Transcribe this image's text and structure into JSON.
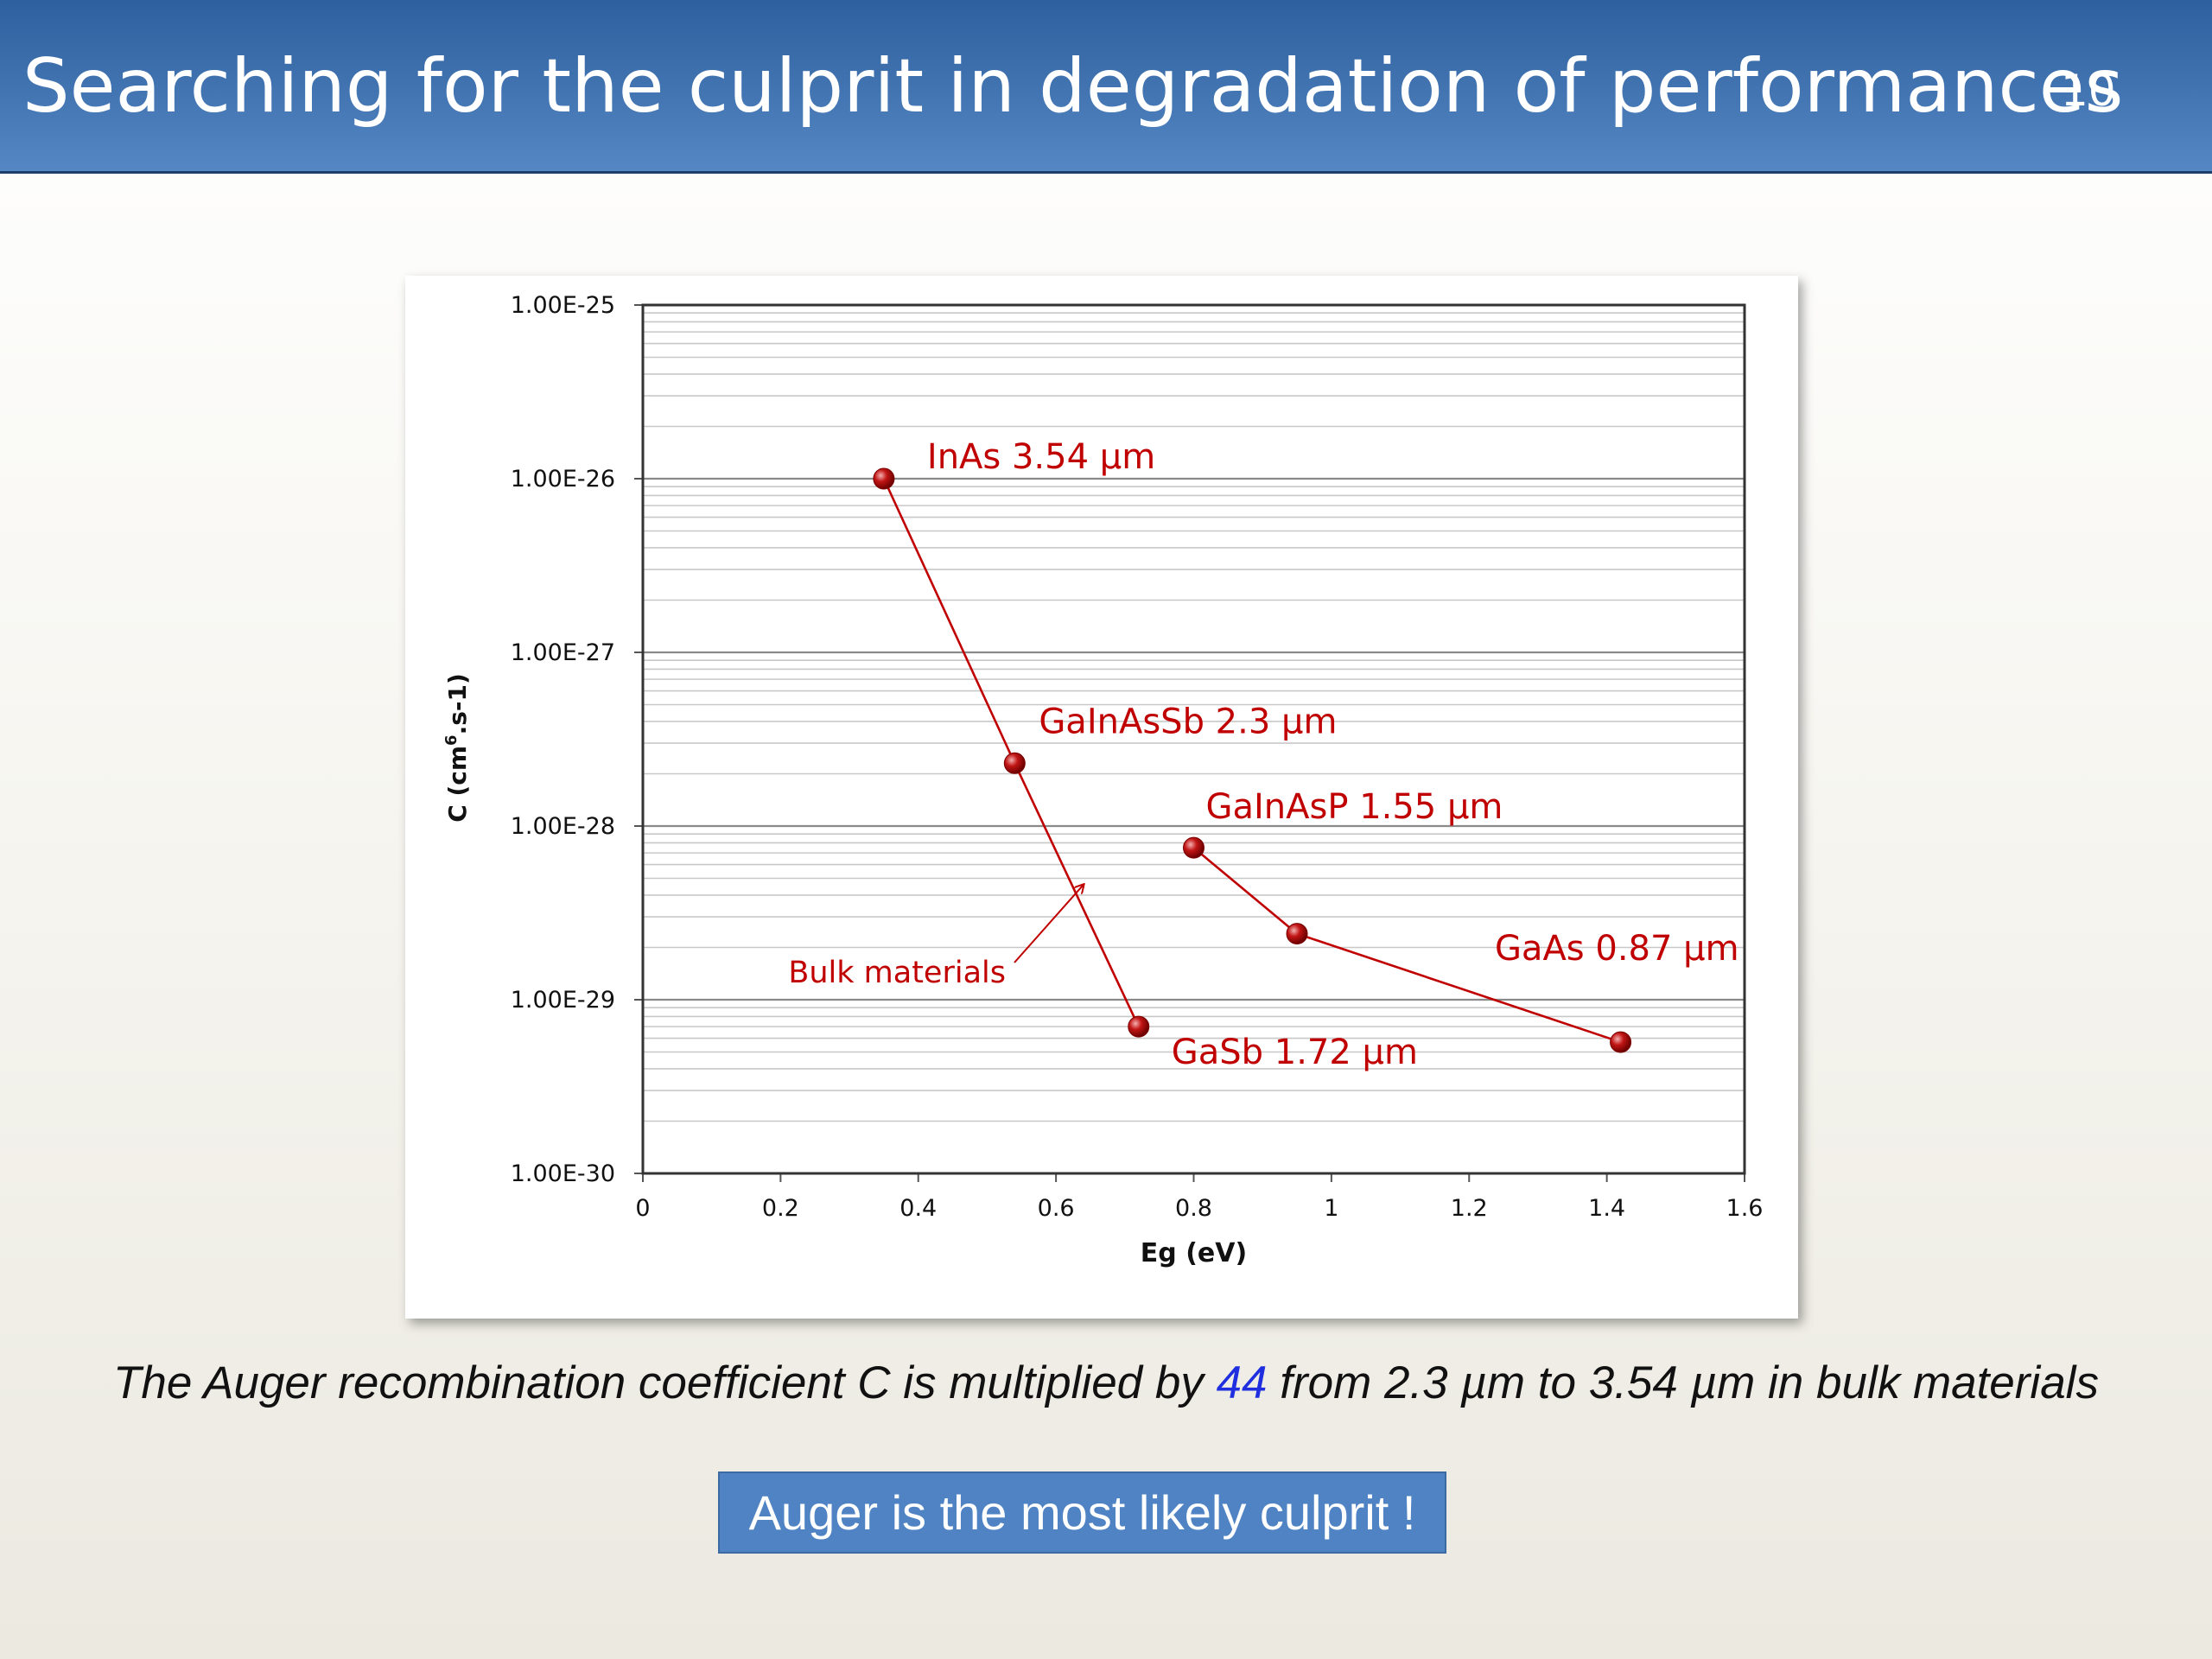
{
  "slide": {
    "title": "Searching for the culprit in degradation of performances",
    "number": "10"
  },
  "caption": {
    "prefix": "The Auger recombination coefficient C is multiplied by ",
    "highlight": "44",
    "suffix": " from 2.3 µm to 3.54 µm in bulk materials"
  },
  "conclusion": "Auger is the most likely culprit !",
  "colors": {
    "header": "#3f72b4",
    "series": "#c00000",
    "highlight": "#1f2fe0",
    "conclusion_box": "#4f83c4"
  },
  "chart_data": {
    "type": "scatter",
    "xlabel": "Eg (eV)",
    "ylabel_main": "C (cm",
    "ylabel_sup": "6",
    "ylabel_tail": ".s-1)",
    "xlim": [
      0,
      1.6
    ],
    "ylim": [
      1e-30,
      1e-25
    ],
    "yscale": "log",
    "grid": true,
    "x_ticks": [
      {
        "value": 0,
        "label": "0"
      },
      {
        "value": 0.2,
        "label": "0.2"
      },
      {
        "value": 0.4,
        "label": "0.4"
      },
      {
        "value": 0.6,
        "label": "0.6"
      },
      {
        "value": 0.8,
        "label": "0.8"
      },
      {
        "value": 1.0,
        "label": "1"
      },
      {
        "value": 1.2,
        "label": "1.2"
      },
      {
        "value": 1.4,
        "label": "1.4"
      },
      {
        "value": 1.6,
        "label": "1.6"
      }
    ],
    "y_ticks": [
      {
        "value": 1e-25,
        "label": "1.00E-25"
      },
      {
        "value": 1e-26,
        "label": "1.00E-26"
      },
      {
        "value": 1e-27,
        "label": "1.00E-27"
      },
      {
        "value": 1e-28,
        "label": "1.00E-28"
      },
      {
        "value": 1e-29,
        "label": "1.00E-29"
      },
      {
        "value": 1e-30,
        "label": "1.00E-30"
      }
    ],
    "series": [
      {
        "points": [
          {
            "x": 0.35,
            "y": 1e-26,
            "label": "InAs 3.54 µm"
          },
          {
            "x": 0.54,
            "y": 2.3e-28,
            "label": "GaInAsSb 2.3 µm"
          },
          {
            "x": 0.72,
            "y": 7e-30,
            "label": "GaSb 1.72 µm"
          }
        ]
      },
      {
        "points": [
          {
            "x": 0.8,
            "y": 7.5e-29,
            "label": "GaInAsP 1.55 µm"
          },
          {
            "x": 0.95,
            "y": 2.4e-29,
            "label": ""
          },
          {
            "x": 1.42,
            "y": 5.7e-30,
            "label": "GaAs 0.87 µm"
          }
        ]
      }
    ],
    "annotations": [
      {
        "text": "Bulk materials",
        "arrow_to": {
          "x": 0.64,
          "y": 4.6e-29
        }
      }
    ]
  }
}
